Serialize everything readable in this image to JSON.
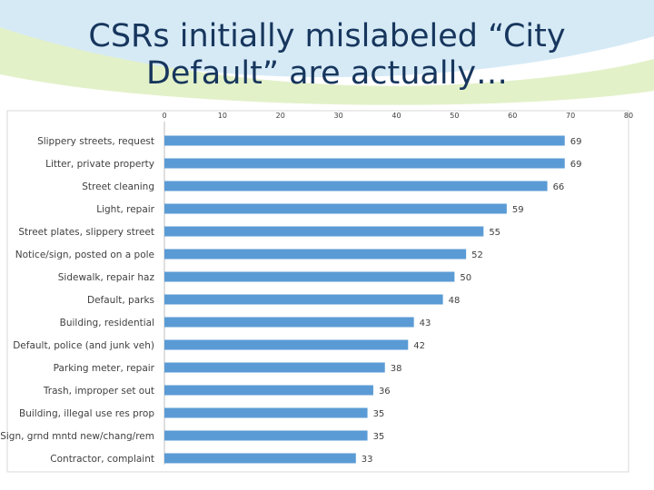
{
  "slide": {
    "title_line1": "CSRs initially mislabeled “City",
    "title_line2": "Default” are actually…"
  },
  "colors": {
    "bar": "#5b9bd5",
    "title": "#17365d",
    "header_blue": "#d6eaf6",
    "header_green": "#e3f1c9"
  },
  "chart_data": {
    "type": "bar",
    "orientation": "horizontal",
    "title": "",
    "xlabel": "",
    "ylabel": "",
    "xlim": [
      0,
      80
    ],
    "xticks": [
      0,
      10,
      20,
      30,
      40,
      50,
      60,
      70,
      80
    ],
    "categories": [
      "Slippery streets, request",
      "Litter, private property",
      "Street cleaning",
      "Light, repair",
      "Street plates, slippery street",
      "Notice/sign, posted on a pole",
      "Sidewalk, repair haz",
      "Default, parks",
      "Building, residential",
      "Default, police (and junk veh)",
      "Parking meter, repair",
      "Trash, improper set out",
      "Building, illegal use res prop",
      "Sign, grnd mntd new/chang/rem",
      "Contractor, complaint"
    ],
    "values": [
      69,
      69,
      66,
      59,
      55,
      52,
      50,
      48,
      43,
      42,
      38,
      36,
      35,
      35,
      33
    ],
    "grid": false,
    "legend": "none",
    "data_labels": true
  }
}
